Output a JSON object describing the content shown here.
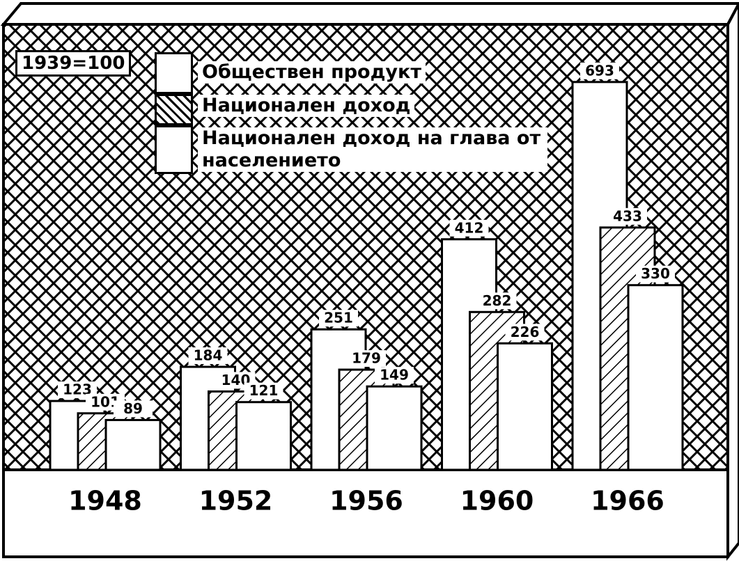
{
  "chart_data": {
    "type": "bar",
    "note": "1939=100",
    "categories": [
      "1948",
      "1952",
      "1956",
      "1960",
      "1966"
    ],
    "series": [
      {
        "name": "Обществен продукт",
        "color": "#ffffff",
        "pattern": "none",
        "values": [
          123,
          184,
          251,
          412,
          693
        ]
      },
      {
        "name": "Национален доход",
        "color": "#ffffff",
        "pattern": "hatch",
        "values": [
          101,
          140,
          179,
          282,
          433
        ]
      },
      {
        "name": "Национален доход на глава от населението",
        "color": "#ffffff",
        "pattern": "none",
        "values": [
          89,
          121,
          149,
          226,
          330
        ]
      }
    ],
    "legend": "top-left",
    "background": "crosshatch"
  }
}
